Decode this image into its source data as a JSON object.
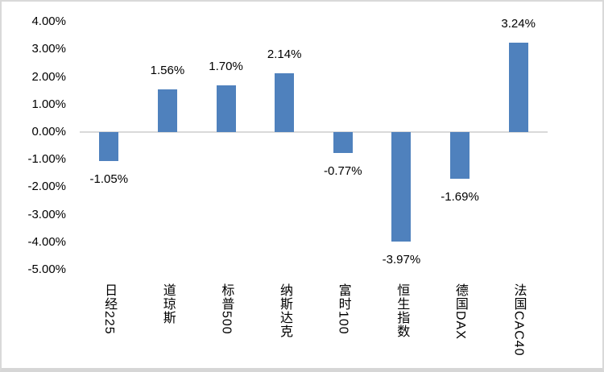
{
  "chart_data": {
    "type": "bar",
    "title": "",
    "xlabel": "",
    "ylabel": "",
    "categories": [
      "日经225",
      "道琼斯",
      "标普500",
      "纳斯达克",
      "富时100",
      "恒生指数",
      "德国DAX",
      "法国CAC40"
    ],
    "values": [
      -1.05,
      1.56,
      1.7,
      2.14,
      -0.77,
      -3.97,
      -1.69,
      3.24
    ],
    "data_labels": [
      "-1.05%",
      "1.56%",
      "1.70%",
      "2.14%",
      "-0.77%",
      "-3.97%",
      "-1.69%",
      "3.24%"
    ],
    "y_tick_labels": [
      "4.00%",
      "3.00%",
      "2.00%",
      "1.00%",
      "0.00%",
      "-1.00%",
      "-2.00%",
      "-3.00%",
      "-4.00%",
      "-5.00%"
    ],
    "y_tick_values": [
      4,
      3,
      2,
      1,
      0,
      -1,
      -2,
      -3,
      -4,
      -5
    ],
    "ylim": [
      -5,
      4
    ],
    "grid": false,
    "legend": null,
    "colors": {
      "bar": "#4F81BD",
      "axis_line": "#D9D9D9",
      "text": "#000000",
      "background": "#FFFFFF"
    }
  }
}
